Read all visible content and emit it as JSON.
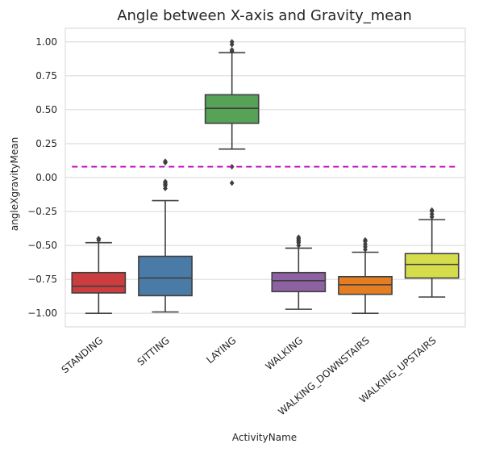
{
  "chart_data": {
    "type": "box",
    "title": "Angle between X-axis and Gravity_mean",
    "xlabel": "ActivityName",
    "ylabel": "angleXgravityMean",
    "ylim": [
      -1.1,
      1.1
    ],
    "yticks": [
      -1.0,
      -0.75,
      -0.5,
      -0.25,
      0.0,
      0.25,
      0.5,
      0.75,
      1.0
    ],
    "ytick_labels": [
      "−1.00",
      "−0.75",
      "−0.50",
      "−0.25",
      "0.00",
      "0.25",
      "0.50",
      "0.75",
      "1.00"
    ],
    "grid": "horizontal",
    "reference_line": {
      "y": 0.08,
      "color": "#bf00bf",
      "style": "dashed"
    },
    "categories": [
      "STANDING",
      "SITTING",
      "LAYING",
      "WALKING",
      "WALKING_DOWNSTAIRS",
      "WALKING_UPSTAIRS"
    ],
    "boxes": [
      {
        "category": "STANDING",
        "color": "#cc3d3f",
        "whisker_low": -1.0,
        "q1": -0.85,
        "median": -0.8,
        "q3": -0.7,
        "whisker_high": -0.48,
        "outliers": [
          -0.46,
          -0.45
        ]
      },
      {
        "category": "SITTING",
        "color": "#4a7ba6",
        "whisker_low": -0.99,
        "q1": -0.87,
        "median": -0.74,
        "q3": -0.58,
        "whisker_high": -0.17,
        "outliers": [
          -0.08,
          -0.06,
          -0.05,
          -0.04,
          -0.03,
          0.11,
          0.12
        ]
      },
      {
        "category": "LAYING",
        "color": "#56a257",
        "whisker_low": 0.21,
        "q1": 0.4,
        "median": 0.51,
        "q3": 0.61,
        "whisker_high": 0.92,
        "outliers": [
          0.93,
          0.94,
          0.98,
          1.0,
          0.08,
          -0.04
        ]
      },
      {
        "category": "WALKING",
        "color": "#8e62a2",
        "whisker_low": -0.97,
        "q1": -0.84,
        "median": -0.76,
        "q3": -0.7,
        "whisker_high": -0.52,
        "outliers": [
          -0.5,
          -0.48,
          -0.47,
          -0.46,
          -0.45,
          -0.44
        ]
      },
      {
        "category": "WALKING_DOWNSTAIRS",
        "color": "#e57e22",
        "whisker_low": -1.0,
        "q1": -0.86,
        "median": -0.79,
        "q3": -0.73,
        "whisker_high": -0.55,
        "outliers": [
          -0.53,
          -0.51,
          -0.49,
          -0.47,
          -0.46
        ]
      },
      {
        "category": "WALKING_UPSTAIRS",
        "color": "#d6dd4c",
        "whisker_low": -0.88,
        "q1": -0.74,
        "median": -0.64,
        "q3": -0.56,
        "whisker_high": -0.31,
        "outliers": [
          -0.29,
          -0.27,
          -0.25,
          -0.24
        ]
      }
    ]
  }
}
